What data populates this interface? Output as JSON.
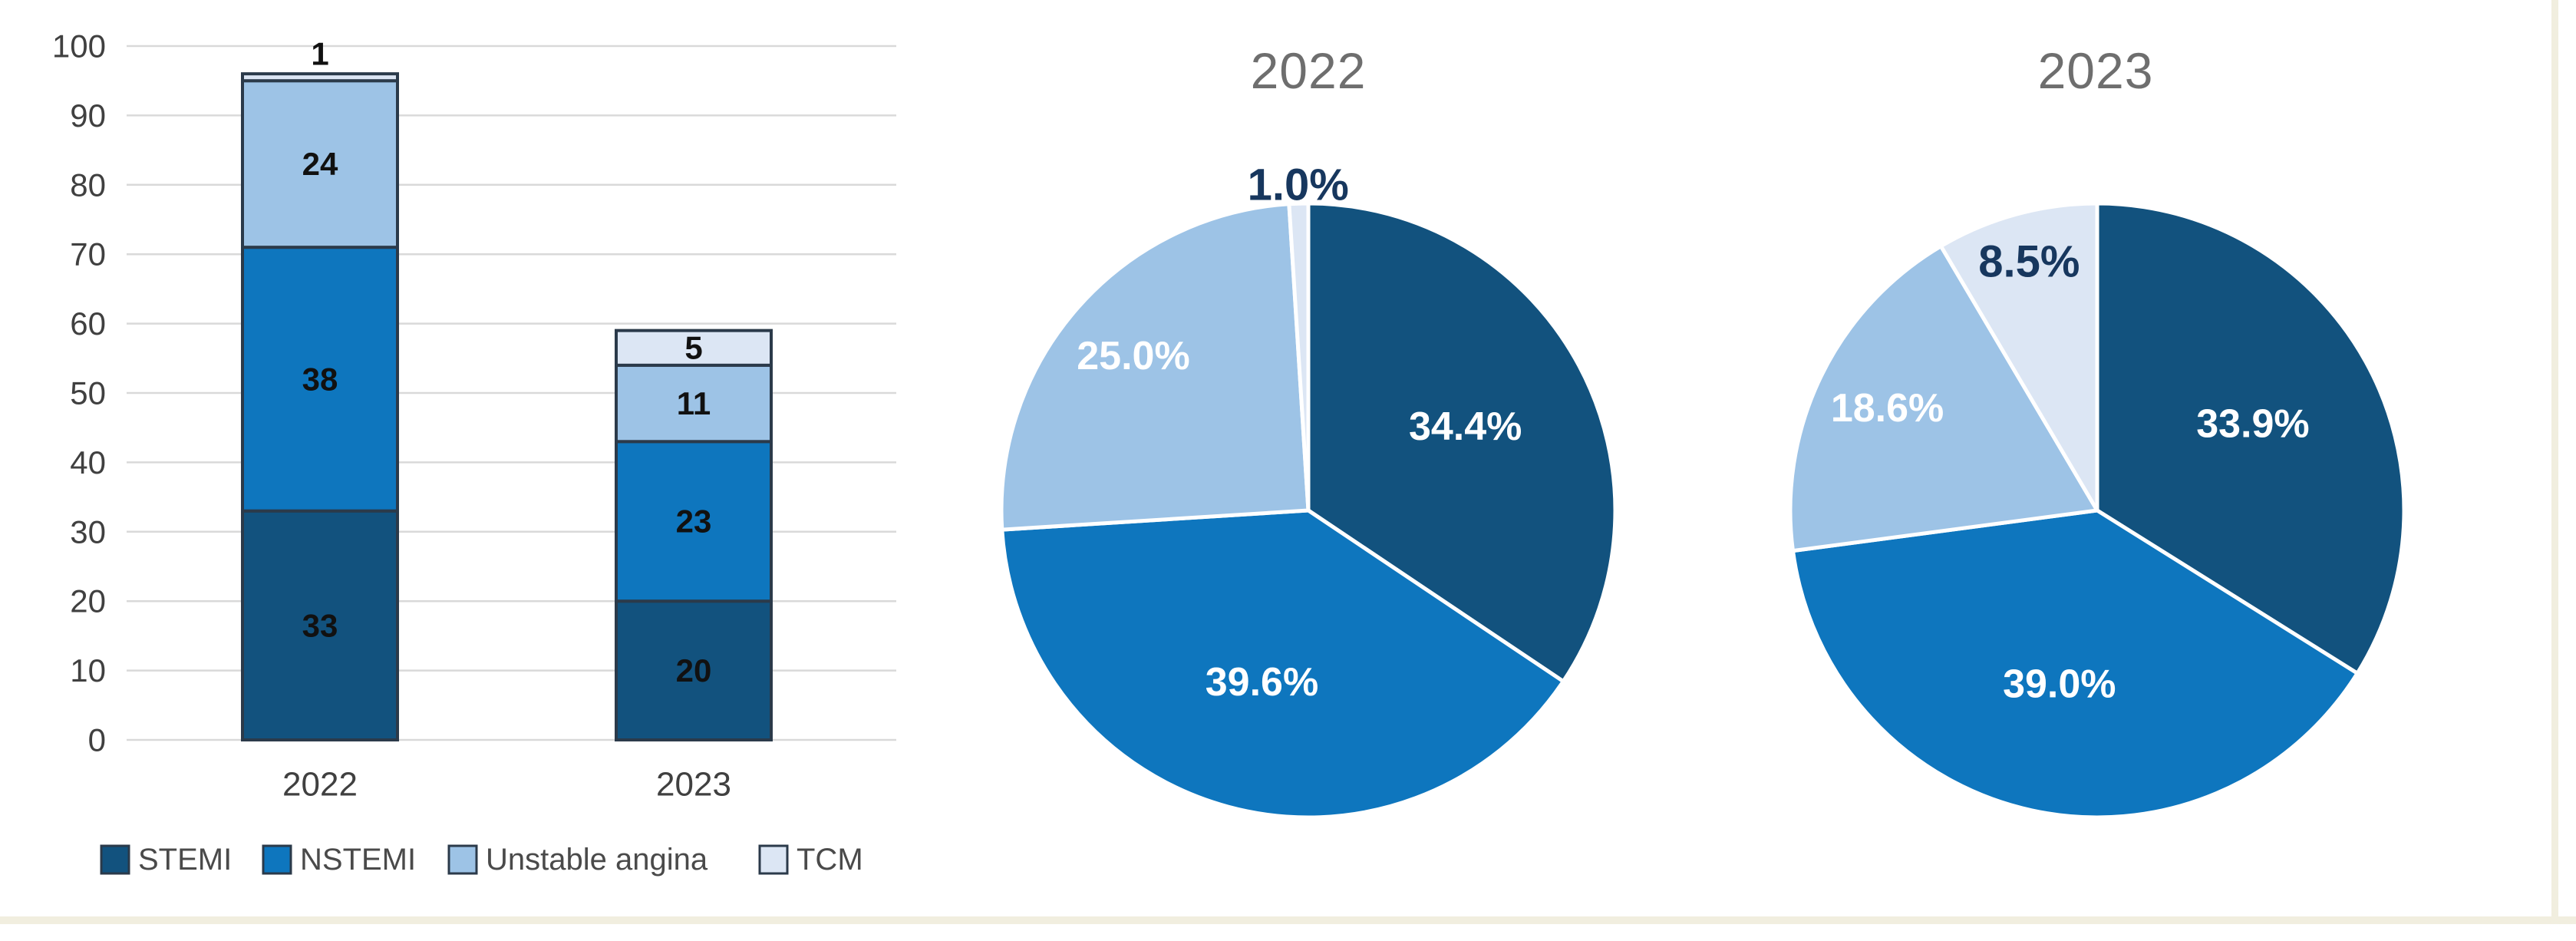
{
  "figure": {
    "background": "#FFFFFF",
    "frame_color": "#F1EEDF"
  },
  "palette": {
    "STEMI": "#12527E",
    "NSTEMI": "#0E76BE",
    "Unstable angina": "#9DC3E6",
    "TCM": "#DCE6F4"
  },
  "chart_data": [
    {
      "type": "bar",
      "subtype": "stacked-column",
      "title": "",
      "categories": [
        "2022",
        "2023"
      ],
      "series": [
        {
          "name": "STEMI",
          "color": "#12527E",
          "values": [
            33,
            20
          ]
        },
        {
          "name": "NSTEMI",
          "color": "#0E76BE",
          "values": [
            38,
            23
          ]
        },
        {
          "name": "Unstable angina",
          "color": "#9DC3E6",
          "values": [
            24,
            11
          ]
        },
        {
          "name": "TCM",
          "color": "#DCE6F4",
          "values": [
            1,
            5
          ]
        }
      ],
      "ylim": [
        0,
        100
      ],
      "ytick_step": 10,
      "grid": true,
      "gridline_color": "#D9D9D9",
      "axis_label_color": "#404040",
      "bar_outline_color": "#2B3A4A",
      "value_label_color": "#111111",
      "legend_position": "bottom",
      "legend_text_color": "#4A4A4A"
    },
    {
      "type": "pie",
      "title": "2022",
      "labels": [
        "STEMI",
        "NSTEMI",
        "Unstable angina",
        "TCM"
      ],
      "values": [
        34.4,
        39.6,
        25.0,
        1.0
      ],
      "value_labels": [
        "34.4%",
        "39.6%",
        "25.0%",
        "1.0%"
      ],
      "colors": [
        "#12527E",
        "#0E76BE",
        "#9DC3E6",
        "#DCE6F4"
      ],
      "start_angle_deg": 0,
      "direction": "clockwise",
      "title_color": "#6E6E6E",
      "label_color_inside": "#FFFFFF",
      "label_color_small": "#17375E",
      "slice_border_color": "#FFFFFF"
    },
    {
      "type": "pie",
      "title": "2023",
      "labels": [
        "STEMI",
        "NSTEMI",
        "Unstable angina",
        "TCM"
      ],
      "values": [
        33.9,
        39.0,
        18.6,
        8.5
      ],
      "value_labels": [
        "33.9%",
        "39.0%",
        "18.6%",
        "8.5%"
      ],
      "colors": [
        "#12527E",
        "#0E76BE",
        "#9DC3E6",
        "#DCE6F4"
      ],
      "start_angle_deg": 0,
      "direction": "clockwise",
      "title_color": "#6E6E6E",
      "label_color_inside": "#FFFFFF",
      "label_color_small": "#17375E",
      "slice_border_color": "#FFFFFF"
    }
  ]
}
